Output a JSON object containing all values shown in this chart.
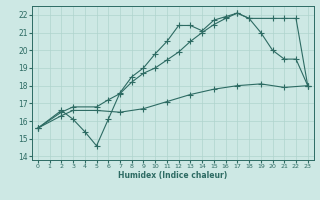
{
  "xlabel": "Humidex (Indice chaleur)",
  "bg_color": "#cde8e4",
  "line_color": "#2d6b63",
  "grid_color": "#b0d4ce",
  "xlim": [
    -0.5,
    23.5
  ],
  "ylim": [
    13.8,
    22.5
  ],
  "xticks": [
    0,
    1,
    2,
    3,
    4,
    5,
    6,
    7,
    8,
    9,
    10,
    11,
    12,
    13,
    14,
    15,
    16,
    17,
    18,
    19,
    20,
    21,
    22,
    23
  ],
  "yticks": [
    14,
    15,
    16,
    17,
    18,
    19,
    20,
    21,
    22
  ],
  "line1_x": [
    0,
    2,
    3,
    4,
    5,
    6,
    7,
    8,
    9,
    10,
    11,
    12,
    13,
    14,
    15,
    16,
    17,
    18,
    19,
    20,
    21,
    22,
    23
  ],
  "line1_y": [
    15.6,
    16.6,
    16.1,
    15.4,
    14.6,
    16.1,
    17.6,
    18.5,
    19.0,
    19.8,
    20.5,
    21.4,
    21.4,
    21.1,
    21.7,
    21.9,
    22.1,
    21.8,
    21.0,
    20.0,
    19.5,
    19.5,
    18.0
  ],
  "line2_x": [
    0,
    2,
    3,
    5,
    6,
    7,
    8,
    9,
    10,
    11,
    12,
    13,
    14,
    15,
    16,
    17,
    18,
    20,
    21,
    22,
    23
  ],
  "line2_y": [
    15.6,
    16.5,
    16.8,
    16.8,
    17.2,
    17.55,
    18.2,
    18.7,
    19.0,
    19.45,
    19.9,
    20.5,
    21.0,
    21.45,
    21.8,
    22.1,
    21.8,
    21.8,
    21.8,
    21.8,
    18.0
  ],
  "line3_x": [
    0,
    2,
    3,
    5,
    7,
    9,
    11,
    13,
    15,
    17,
    19,
    21,
    23
  ],
  "line3_y": [
    15.6,
    16.3,
    16.6,
    16.6,
    16.5,
    16.7,
    17.1,
    17.5,
    17.8,
    18.0,
    18.1,
    17.9,
    18.0
  ]
}
